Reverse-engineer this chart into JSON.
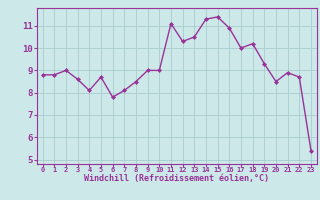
{
  "x": [
    0,
    1,
    2,
    3,
    4,
    5,
    6,
    7,
    8,
    9,
    10,
    11,
    12,
    13,
    14,
    15,
    16,
    17,
    18,
    19,
    20,
    21,
    22,
    23
  ],
  "y": [
    8.8,
    8.8,
    9.0,
    8.6,
    8.1,
    8.7,
    7.8,
    8.1,
    8.5,
    9.0,
    9.0,
    11.1,
    10.3,
    10.5,
    11.3,
    11.4,
    10.9,
    10.0,
    10.2,
    9.3,
    8.5,
    8.9,
    8.7,
    5.4
  ],
  "line_color": "#993399",
  "marker": "D",
  "marker_size": 2,
  "xlabel": "Windchill (Refroidissement éolien,°C)",
  "xlim": [
    -0.5,
    23.5
  ],
  "ylim": [
    4.8,
    11.8
  ],
  "yticks": [
    5,
    6,
    7,
    8,
    9,
    10,
    11
  ],
  "xticks": [
    0,
    1,
    2,
    3,
    4,
    5,
    6,
    7,
    8,
    9,
    10,
    11,
    12,
    13,
    14,
    15,
    16,
    17,
    18,
    19,
    20,
    21,
    22,
    23
  ],
  "bg_color": "#cce8e8",
  "grid_color": "#aacccc",
  "tick_color": "#993399",
  "label_color": "#993399",
  "line_width": 1.0,
  "xlabel_fontsize": 6.0,
  "xtick_fontsize": 5.0,
  "ytick_fontsize": 6.5
}
